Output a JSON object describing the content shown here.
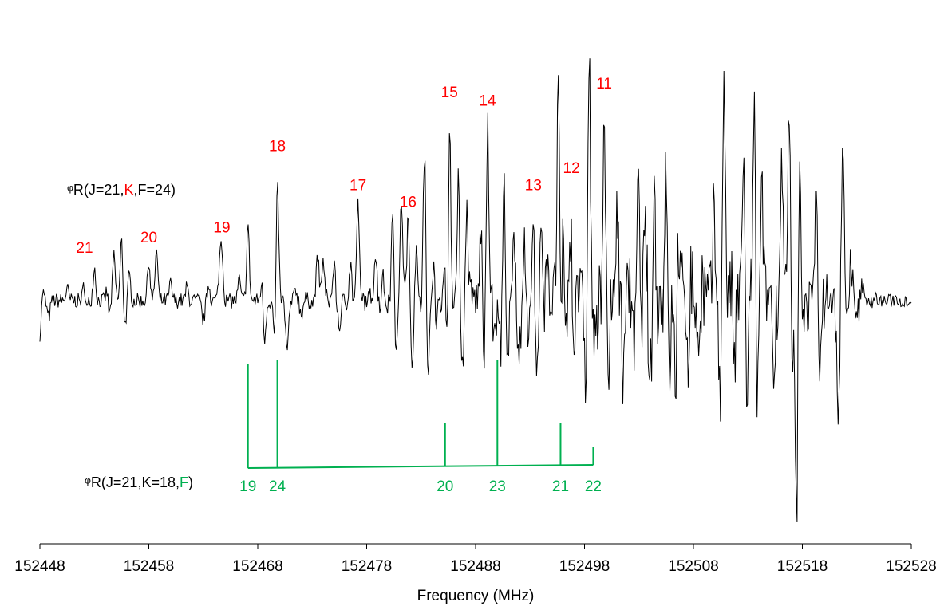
{
  "chart_data": {
    "type": "line",
    "xlabel": "Frequency (MHz)",
    "ylabel": "",
    "xlim": [
      152448,
      152528
    ],
    "x_ticks": [
      152448,
      152458,
      152468,
      152478,
      152488,
      152498,
      152508,
      152518,
      152528
    ],
    "grid": false,
    "legend": "none",
    "spectrum_color": "#000000",
    "k_color": "#ff0000",
    "f_color": "#00b050",
    "series": [
      {
        "peaks": [
          {
            "x": 152448.2,
            "y": 0.1
          },
          {
            "x": 152450.5,
            "y": 0.07
          },
          {
            "x": 152452.1,
            "y": 0.18
          },
          {
            "x": 152453.0,
            "y": 0.2
          },
          {
            "x": 152454.2,
            "y": 0.15
          },
          {
            "x": 152454.8,
            "y": 0.26
          },
          {
            "x": 152455.5,
            "y": 0.37
          },
          {
            "x": 152456.2,
            "y": 0.15
          },
          {
            "x": 152458.0,
            "y": 0.24
          },
          {
            "x": 152458.7,
            "y": 0.3
          },
          {
            "x": 152460.0,
            "y": 0.1
          },
          {
            "x": 152461.5,
            "y": 0.08
          },
          {
            "x": 152463.5,
            "y": 0.1
          },
          {
            "x": 152464.5,
            "y": 0.18
          },
          {
            "x": 152464.7,
            "y": 0.3
          },
          {
            "x": 152466.3,
            "y": 0.12
          },
          {
            "x": 152467.1,
            "y": 0.44
          },
          {
            "x": 152468.4,
            "y": 0.16
          },
          {
            "x": 152469.8,
            "y": 0.78
          },
          {
            "x": 152471.5,
            "y": 0.07
          },
          {
            "x": 152473.5,
            "y": 0.28
          },
          {
            "x": 152474.0,
            "y": 0.25
          },
          {
            "x": 152475.0,
            "y": 0.35
          },
          {
            "x": 152476.5,
            "y": 0.22
          },
          {
            "x": 152477.2,
            "y": 0.55
          },
          {
            "x": 152478.8,
            "y": 0.3
          },
          {
            "x": 152479.5,
            "y": 0.35
          },
          {
            "x": 152480.4,
            "y": 0.55
          },
          {
            "x": 152481.2,
            "y": 0.6
          },
          {
            "x": 152481.8,
            "y": 0.45
          },
          {
            "x": 152482.5,
            "y": 0.35
          },
          {
            "x": 152483.3,
            "y": 0.95
          },
          {
            "x": 152484.2,
            "y": 0.45
          },
          {
            "x": 152485.2,
            "y": 0.4
          },
          {
            "x": 152485.6,
            "y": 1.1
          },
          {
            "x": 152486.4,
            "y": 0.7
          },
          {
            "x": 152487.2,
            "y": 0.55
          },
          {
            "x": 152488.5,
            "y": 0.45
          },
          {
            "x": 152489.1,
            "y": 1.05
          },
          {
            "x": 152490.6,
            "y": 0.85
          },
          {
            "x": 152491.5,
            "y": 0.55
          },
          {
            "x": 152492.5,
            "y": 0.45
          },
          {
            "x": 152493.3,
            "y": 0.55
          },
          {
            "x": 152494.0,
            "y": 0.35
          },
          {
            "x": 152494.6,
            "y": 0.7
          },
          {
            "x": 152495.6,
            "y": 1.65
          },
          {
            "x": 152496.1,
            "y": 0.65
          },
          {
            "x": 152496.8,
            "y": 0.65
          },
          {
            "x": 152497.2,
            "y": 0.38
          },
          {
            "x": 152498.4,
            "y": 1.7
          },
          {
            "x": 152499.8,
            "y": 1.15
          },
          {
            "x": 152501.0,
            "y": 0.6
          },
          {
            "x": 152501.9,
            "y": 0.35
          },
          {
            "x": 152502.9,
            "y": 0.65
          },
          {
            "x": 152503.6,
            "y": 0.4
          },
          {
            "x": 152504.4,
            "y": 0.62
          },
          {
            "x": 152505.5,
            "y": 1.15
          },
          {
            "x": 152506.6,
            "y": 0.55
          },
          {
            "x": 152507.7,
            "y": 0.45
          },
          {
            "x": 152508.7,
            "y": 0.5
          },
          {
            "x": 152509.9,
            "y": 0.5
          },
          {
            "x": 152510.8,
            "y": 1.45
          },
          {
            "x": 152511.6,
            "y": 0.45
          },
          {
            "x": 152512.6,
            "y": 0.95
          },
          {
            "x": 152513.6,
            "y": 1.4
          },
          {
            "x": 152514.3,
            "y": 0.6
          },
          {
            "x": 152515.2,
            "y": 0.45
          },
          {
            "x": 152516.1,
            "y": 0.85
          },
          {
            "x": 152516.8,
            "y": 1.3
          },
          {
            "x": 152517.7,
            "y": 1.2
          },
          {
            "x": 152518.3,
            "y": 0.55
          },
          {
            "x": 152519.3,
            "y": 0.8
          },
          {
            "x": 152520.3,
            "y": 0.45
          },
          {
            "x": 152521.7,
            "y": 0.9
          },
          {
            "x": 152522.4,
            "y": 0.35
          },
          {
            "x": 152523.5,
            "y": 0.1
          }
        ],
        "troughs": [
          {
            "x": 152448.0,
            "y": -0.25
          },
          {
            "x": 152448.8,
            "y": -0.1
          },
          {
            "x": 152452.2,
            "y": -0.12
          },
          {
            "x": 152454.3,
            "y": -0.15
          },
          {
            "x": 152455.8,
            "y": -0.15
          },
          {
            "x": 152463.0,
            "y": -0.12
          },
          {
            "x": 152468.6,
            "y": -0.25
          },
          {
            "x": 152469.6,
            "y": -0.3
          },
          {
            "x": 152470.7,
            "y": -0.3
          },
          {
            "x": 152472.0,
            "y": -0.07
          },
          {
            "x": 152475.0,
            "y": -0.12
          },
          {
            "x": 152475.5,
            "y": -0.15
          },
          {
            "x": 152479.5,
            "y": -0.2
          },
          {
            "x": 152480.7,
            "y": -0.28
          },
          {
            "x": 152482.2,
            "y": -0.38
          },
          {
            "x": 152483.6,
            "y": -0.45
          },
          {
            "x": 152484.3,
            "y": -0.3
          },
          {
            "x": 152485.4,
            "y": -0.55
          },
          {
            "x": 152486.8,
            "y": -0.4
          },
          {
            "x": 152488.8,
            "y": -0.35
          },
          {
            "x": 152489.8,
            "y": -0.25
          },
          {
            "x": 152490.4,
            "y": -0.35
          },
          {
            "x": 152490.9,
            "y": -0.5
          },
          {
            "x": 152492.0,
            "y": -0.42
          },
          {
            "x": 152492.8,
            "y": -0.3
          },
          {
            "x": 152493.6,
            "y": -0.48
          },
          {
            "x": 152494.6,
            "y": -0.38
          },
          {
            "x": 152495.7,
            "y": -0.55
          },
          {
            "x": 152496.2,
            "y": -0.45
          },
          {
            "x": 152497.0,
            "y": -0.6
          },
          {
            "x": 152498.2,
            "y": -0.7
          },
          {
            "x": 152499.0,
            "y": -0.35
          },
          {
            "x": 152500.2,
            "y": -0.45
          },
          {
            "x": 152501.6,
            "y": -0.5
          },
          {
            "x": 152502.6,
            "y": -0.35
          },
          {
            "x": 152504.0,
            "y": -0.55
          },
          {
            "x": 152505.7,
            "y": -0.62
          },
          {
            "x": 152506.4,
            "y": -0.55
          },
          {
            "x": 152507.6,
            "y": -0.5
          },
          {
            "x": 152508.6,
            "y": -0.6
          },
          {
            "x": 152510.5,
            "y": -0.52
          },
          {
            "x": 152511.7,
            "y": -0.65
          },
          {
            "x": 152512.9,
            "y": -0.6
          },
          {
            "x": 152513.8,
            "y": -0.75
          },
          {
            "x": 152515.3,
            "y": -0.72
          },
          {
            "x": 152517.0,
            "y": -0.55
          },
          {
            "x": 152517.5,
            "y": -1.55
          },
          {
            "x": 152518.3,
            "y": -0.55
          },
          {
            "x": 152519.6,
            "y": -0.5
          },
          {
            "x": 152520.3,
            "y": -0.35
          },
          {
            "x": 152521.3,
            "y": -0.65
          },
          {
            "x": 152522.2,
            "y": -0.2
          },
          {
            "x": 152523.0,
            "y": -0.15
          }
        ]
      }
    ],
    "k_series_label": {
      "parts": [
        {
          "text": "ᵠR(J=21,",
          "color": "#000000"
        },
        {
          "text": "K",
          "color": "#ff0000"
        },
        {
          "text": ",F=24)",
          "color": "#000000"
        }
      ]
    },
    "f_series_label": {
      "parts": [
        {
          "text": "ᵠR(J=21,K=18,",
          "color": "#000000"
        },
        {
          "text": "F",
          "color": "#00b050"
        },
        {
          "text": ")",
          "color": "#000000"
        }
      ]
    },
    "k_assignments": [
      {
        "label": "21",
        "x": 152452.1
      },
      {
        "label": "20",
        "x": 152458.0
      },
      {
        "label": "19",
        "x": 152464.7
      },
      {
        "label": "18",
        "x": 152469.8
      },
      {
        "label": "17",
        "x": 152477.2
      },
      {
        "label": "16",
        "x": 152481.8
      },
      {
        "label": "15",
        "x": 152485.6
      },
      {
        "label": "14",
        "x": 152489.1
      },
      {
        "label": "13",
        "x": 152493.3
      },
      {
        "label": "12",
        "x": 152496.8
      },
      {
        "label": "11",
        "x": 152499.8
      }
    ],
    "f_assignments": [
      {
        "label": "19",
        "x": 152467.1
      },
      {
        "label": "24",
        "x": 152469.8
      },
      {
        "label": "20",
        "x": 152485.2
      },
      {
        "label": "23",
        "x": 152490.0
      },
      {
        "label": "21",
        "x": 152495.8
      },
      {
        "label": "22",
        "x": 152498.8
      }
    ]
  }
}
